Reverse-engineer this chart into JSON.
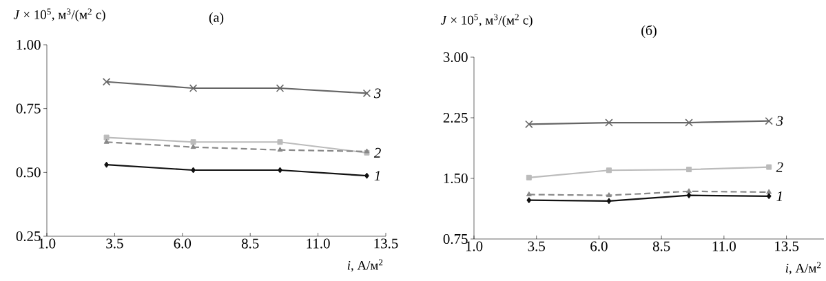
{
  "chart_data": [
    {
      "type": "line",
      "title": "(a)",
      "ylabel": "*J* × 10$^{5}$, м$^{3}$/(м$^{2}$ с)",
      "xlabel": "*i*, А/м$^{2}$",
      "x": [
        3.2,
        6.4,
        9.6,
        12.8
      ],
      "series": [
        {
          "name": "3",
          "color": "#666666",
          "marker": "cross",
          "values": [
            0.855,
            0.83,
            0.83,
            0.81
          ]
        },
        {
          "name": "2",
          "color": "#bbbbbb",
          "marker": "square",
          "values": [
            0.637,
            0.619,
            0.619,
            0.577
          ]
        },
        {
          "color": "#888888",
          "marker": "triangle",
          "line_style": "dashed",
          "values": [
            0.619,
            0.599,
            0.588,
            0.582
          ]
        },
        {
          "name": "1",
          "color": "#111111",
          "marker": "diamond",
          "values": [
            0.53,
            0.509,
            0.509,
            0.487
          ]
        }
      ],
      "xlim": [
        1.0,
        13.5
      ],
      "ylim": [
        0.25,
        1.0
      ],
      "xticks": [
        {
          "value": 1.0,
          "label": "1.0"
        },
        {
          "value": 3.5,
          "label": "3.5"
        },
        {
          "value": 6.0,
          "label": "6.0"
        },
        {
          "value": 8.5,
          "label": "8.5"
        },
        {
          "value": 11.0,
          "label": "11.0"
        },
        {
          "value": 13.5,
          "label": "13.5"
        }
      ],
      "yticks": [
        {
          "value": 0.25,
          "label": "0.25"
        },
        {
          "value": 0.5,
          "label": "0.50"
        },
        {
          "value": 0.75,
          "label": "0.75"
        },
        {
          "value": 1.0,
          "label": "1.00"
        }
      ]
    },
    {
      "type": "line",
      "title": "(б)",
      "ylabel": "*J* × 10$^{5}$, м$^{3}$/(м$^{2}$ с)",
      "xlabel": "*i*, А/м$^{2}$",
      "x": [
        3.2,
        6.4,
        9.6,
        12.8
      ],
      "series": [
        {
          "name": "3",
          "color": "#666666",
          "marker": "cross",
          "values": [
            2.17,
            2.19,
            2.19,
            2.21
          ]
        },
        {
          "name": "2",
          "color": "#bbbbbb",
          "marker": "square",
          "values": [
            1.51,
            1.6,
            1.61,
            1.64
          ]
        },
        {
          "color": "#888888",
          "marker": "triangle",
          "line_style": "dashed",
          "values": [
            1.3,
            1.29,
            1.34,
            1.33
          ]
        },
        {
          "name": "1",
          "color": "#111111",
          "marker": "diamond",
          "values": [
            1.23,
            1.22,
            1.29,
            1.28
          ]
        }
      ],
      "xlim": [
        1.0,
        15.0
      ],
      "ylim": [
        0.75,
        3.0
      ],
      "xticks": [
        {
          "value": 1.0,
          "label": "1.0"
        },
        {
          "value": 3.5,
          "label": "3.5"
        },
        {
          "value": 6.0,
          "label": "6.0"
        },
        {
          "value": 8.5,
          "label": "8.5"
        },
        {
          "value": 11.0,
          "label": "11.0"
        },
        {
          "value": 13.5,
          "label": "13.5"
        }
      ],
      "yticks": [
        {
          "value": 0.75,
          "label": "0.75"
        },
        {
          "value": 1.5,
          "label": "1.50"
        },
        {
          "value": 2.25,
          "label": "2.25"
        },
        {
          "value": 3.0,
          "label": "3.00"
        }
      ]
    }
  ]
}
